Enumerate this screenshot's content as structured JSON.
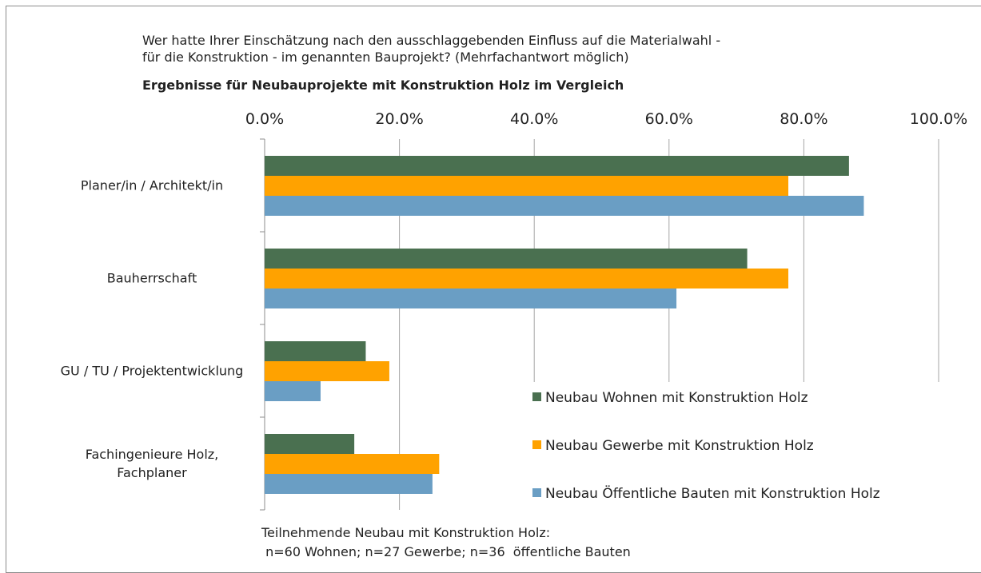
{
  "chart_data": {
    "type": "bar",
    "orientation": "horizontal",
    "title_lines": [
      "Wer hatte Ihrer Einschätzung nach den ausschlaggebenden Einfluss auf die Materialwahl -",
      "für die Konstruktion - im genannten Bauprojekt? (Mehrfachantwort möglich)"
    ],
    "subtitle": "Ergebnisse für Neubauprojekte mit Konstruktion Holz im Vergleich",
    "categories": [
      "Planer/in / Architekt/in",
      "Bauherrschaft",
      "GU / TU / Projektentwicklung",
      "Fachingenieure Holz, Fachplaner"
    ],
    "series": [
      {
        "name": "Neubau Wohnen mit Konstruktion Holz",
        "color": "#4a7050",
        "values": [
          86.7,
          71.6,
          15.0,
          13.3
        ]
      },
      {
        "name": "Neubau Gewerbe mit Konstruktion Holz",
        "color": "#ffa200",
        "values": [
          77.7,
          77.7,
          18.5,
          25.9
        ]
      },
      {
        "name": "Neubau Öffentliche Bauten mit Konstruktion Holz",
        "color": "#6a9ec4",
        "values": [
          88.9,
          61.1,
          8.3,
          24.9
        ]
      }
    ],
    "xlim": [
      0,
      100
    ],
    "xticks": [
      {
        "value": 0,
        "label": "0.0%"
      },
      {
        "value": 20,
        "label": "20.0%"
      },
      {
        "value": 40,
        "label": "40.0%"
      },
      {
        "value": 60,
        "label": "60.0%"
      },
      {
        "value": 80,
        "label": "80.0%"
      },
      {
        "value": 100,
        "label": "100.0%"
      }
    ],
    "grid": true,
    "legend": "lower right",
    "footnote_lines": [
      "Teilnehmende Neubau mit Konstruktion Holz:",
      " n=60 Wohnen; n=27 Gewerbe; n=36  öffentliche Bauten"
    ]
  }
}
